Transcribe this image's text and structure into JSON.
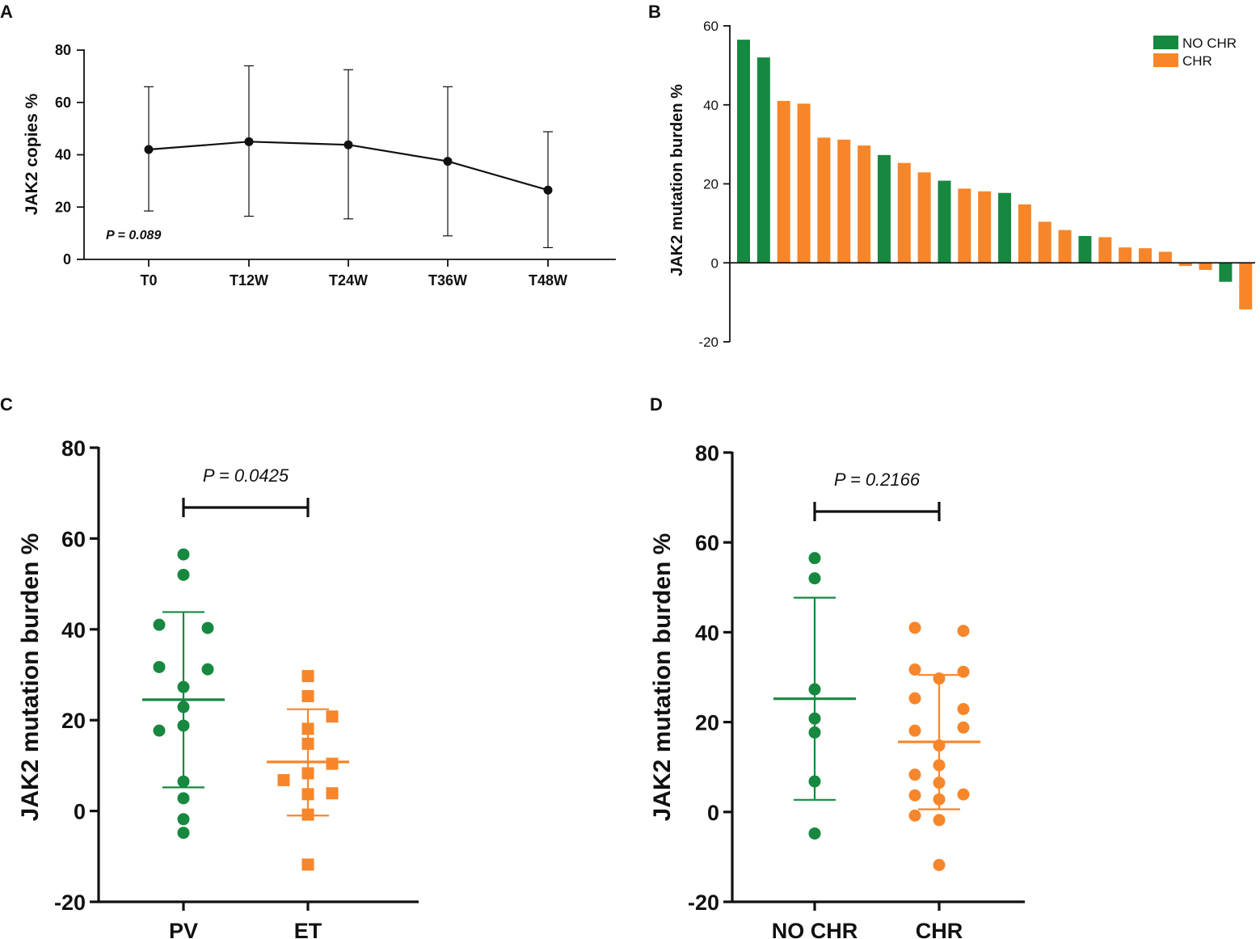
{
  "colors": {
    "green": "#178840",
    "orange": "#F7862A",
    "axis": "#111111"
  },
  "chart_data": [
    {
      "panel": "A",
      "type": "line",
      "ylabel": "JAK2 copies %",
      "ylim": [
        0,
        80
      ],
      "yticks": [
        0,
        20,
        40,
        60,
        80
      ],
      "categories": [
        "T0",
        "T12W",
        "T24W",
        "T36W",
        "T48W"
      ],
      "values": [
        42,
        45,
        43.8,
        37.5,
        26.5
      ],
      "error_low": [
        18.5,
        16.5,
        15.5,
        9,
        4.5
      ],
      "error_high": [
        66,
        74,
        72.5,
        66,
        48.8
      ],
      "annotation": "P = 0.089"
    },
    {
      "panel": "B",
      "type": "bar",
      "ylabel": "JAK2 mutation burden  %",
      "ylim": [
        -20,
        60
      ],
      "yticks": [
        -20,
        0,
        20,
        40,
        60
      ],
      "legend": [
        {
          "label": "NO CHR",
          "group": "NO CHR"
        },
        {
          "label": "CHR",
          "group": "CHR"
        }
      ],
      "bars": [
        {
          "value": 56.5,
          "group": "NO CHR"
        },
        {
          "value": 52,
          "group": "NO CHR"
        },
        {
          "value": 41,
          "group": "CHR"
        },
        {
          "value": 40.3,
          "group": "CHR"
        },
        {
          "value": 31.7,
          "group": "CHR"
        },
        {
          "value": 31.2,
          "group": "CHR"
        },
        {
          "value": 29.7,
          "group": "CHR"
        },
        {
          "value": 27.3,
          "group": "NO CHR"
        },
        {
          "value": 25.3,
          "group": "CHR"
        },
        {
          "value": 22.9,
          "group": "CHR"
        },
        {
          "value": 20.8,
          "group": "NO CHR"
        },
        {
          "value": 18.8,
          "group": "CHR"
        },
        {
          "value": 18.1,
          "group": "CHR"
        },
        {
          "value": 17.7,
          "group": "NO CHR"
        },
        {
          "value": 14.8,
          "group": "CHR"
        },
        {
          "value": 10.4,
          "group": "CHR"
        },
        {
          "value": 8.3,
          "group": "CHR"
        },
        {
          "value": 6.8,
          "group": "NO CHR"
        },
        {
          "value": 6.5,
          "group": "CHR"
        },
        {
          "value": 3.9,
          "group": "CHR"
        },
        {
          "value": 3.7,
          "group": "CHR"
        },
        {
          "value": 2.8,
          "group": "CHR"
        },
        {
          "value": -0.8,
          "group": "CHR"
        },
        {
          "value": -1.8,
          "group": "CHR"
        },
        {
          "value": -4.8,
          "group": "NO CHR"
        },
        {
          "value": -11.8,
          "group": "CHR"
        }
      ]
    },
    {
      "panel": "C",
      "type": "scatter",
      "ylabel": "JAK2 mutation burden  %",
      "ylim": [
        -20,
        80
      ],
      "yticks": [
        -20,
        0,
        20,
        40,
        60,
        80
      ],
      "annotation": "P = 0.0425",
      "groups": [
        {
          "name": "PV",
          "marker": "circle",
          "color": "green",
          "mean": 24.5,
          "sd_low": 5.2,
          "sd_high": 43.8,
          "points": [
            {
              "x": 0,
              "y": 56.5
            },
            {
              "x": 0,
              "y": 52
            },
            {
              "x": -0.3,
              "y": 41
            },
            {
              "x": 0.3,
              "y": 40.3
            },
            {
              "x": -0.3,
              "y": 31.7
            },
            {
              "x": 0.3,
              "y": 31.2
            },
            {
              "x": 0,
              "y": 27.3
            },
            {
              "x": 0,
              "y": 22.9
            },
            {
              "x": -0.3,
              "y": 17.7
            },
            {
              "x": 0,
              "y": 18.8
            },
            {
              "x": 0,
              "y": 6.5
            },
            {
              "x": 0,
              "y": 2.8
            },
            {
              "x": 0,
              "y": -1.8
            },
            {
              "x": 0,
              "y": -4.8
            }
          ]
        },
        {
          "name": "ET",
          "marker": "square",
          "color": "orange",
          "mean": 10.8,
          "sd_low": -1,
          "sd_high": 22.4,
          "points": [
            {
              "x": 0,
              "y": 29.7
            },
            {
              "x": 0,
              "y": 25.3
            },
            {
              "x": 0.3,
              "y": 20.8
            },
            {
              "x": 0,
              "y": 18.1
            },
            {
              "x": 0,
              "y": 14.8
            },
            {
              "x": 0.3,
              "y": 10.4
            },
            {
              "x": 0,
              "y": 8.3
            },
            {
              "x": -0.3,
              "y": 6.8
            },
            {
              "x": 0.3,
              "y": 3.9
            },
            {
              "x": 0,
              "y": 3.7
            },
            {
              "x": 0,
              "y": -0.8
            },
            {
              "x": 0,
              "y": -11.8
            }
          ]
        }
      ]
    },
    {
      "panel": "D",
      "type": "scatter",
      "ylabel": "JAK2  mutation burden %",
      "ylim": [
        -20,
        80
      ],
      "yticks": [
        -20,
        0,
        20,
        40,
        60,
        80
      ],
      "annotation": "P = 0.2166",
      "groups": [
        {
          "name": "NO CHR",
          "marker": "circle",
          "color": "green",
          "mean": 25.2,
          "sd_low": 2.7,
          "sd_high": 47.7,
          "points": [
            {
              "x": 0,
              "y": 56.5
            },
            {
              "x": 0,
              "y": 52
            },
            {
              "x": 0,
              "y": 27.3
            },
            {
              "x": 0,
              "y": 20.8
            },
            {
              "x": 0,
              "y": 17.7
            },
            {
              "x": 0,
              "y": 6.8
            },
            {
              "x": 0,
              "y": -4.8
            }
          ]
        },
        {
          "name": "CHR",
          "marker": "circle",
          "color": "orange",
          "mean": 15.6,
          "sd_low": 0.6,
          "sd_high": 30.5,
          "points": [
            {
              "x": -0.3,
              "y": 41
            },
            {
              "x": 0.3,
              "y": 40.3
            },
            {
              "x": -0.3,
              "y": 31.7
            },
            {
              "x": 0.3,
              "y": 31.2
            },
            {
              "x": 0,
              "y": 29.7
            },
            {
              "x": -0.3,
              "y": 25.3
            },
            {
              "x": 0.3,
              "y": 22.9
            },
            {
              "x": 0.3,
              "y": 18.8
            },
            {
              "x": -0.3,
              "y": 18.1
            },
            {
              "x": 0,
              "y": 14.8
            },
            {
              "x": 0,
              "y": 10.4
            },
            {
              "x": -0.3,
              "y": 8.3
            },
            {
              "x": 0,
              "y": 6.5
            },
            {
              "x": -0.3,
              "y": 3.7
            },
            {
              "x": 0.3,
              "y": 3.9
            },
            {
              "x": 0,
              "y": 2.8
            },
            {
              "x": -0.3,
              "y": -0.8
            },
            {
              "x": 0,
              "y": -1.8
            },
            {
              "x": 0,
              "y": -11.8
            }
          ]
        }
      ]
    }
  ]
}
